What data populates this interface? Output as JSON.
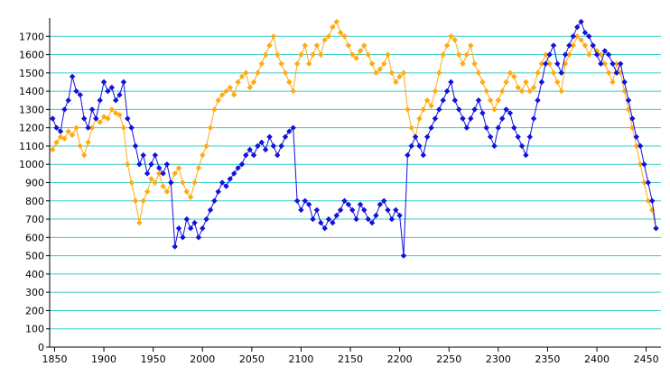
{
  "chart_data": {
    "type": "scatter",
    "xlim": [
      1845,
      2465
    ],
    "ylim": [
      0,
      1800
    ],
    "x_ticks": [
      1850,
      1900,
      1950,
      2000,
      2050,
      2100,
      2150,
      2200,
      2250,
      2300,
      2350,
      2400,
      2450
    ],
    "y_ticks": [
      0,
      100,
      200,
      300,
      400,
      500,
      600,
      700,
      800,
      900,
      1000,
      1100,
      1200,
      1300,
      1400,
      1500,
      1600,
      1700
    ],
    "grid": "horizontal",
    "colors": {
      "orange": "#ffaa11",
      "blue": "#1111dd",
      "grid": "#33cccc",
      "axis": "#000000"
    },
    "series": [
      {
        "color": "#ffaa11",
        "marker": "diamond",
        "points": [
          [
            1848,
            1080
          ],
          [
            1852,
            1120
          ],
          [
            1856,
            1150
          ],
          [
            1860,
            1140
          ],
          [
            1864,
            1180
          ],
          [
            1868,
            1160
          ],
          [
            1872,
            1200
          ],
          [
            1876,
            1100
          ],
          [
            1880,
            1050
          ],
          [
            1884,
            1120
          ],
          [
            1888,
            1200
          ],
          [
            1892,
            1250
          ],
          [
            1896,
            1230
          ],
          [
            1900,
            1260
          ],
          [
            1904,
            1250
          ],
          [
            1908,
            1300
          ],
          [
            1912,
            1280
          ],
          [
            1916,
            1270
          ],
          [
            1920,
            1200
          ],
          [
            1924,
            1000
          ],
          [
            1928,
            900
          ],
          [
            1932,
            800
          ],
          [
            1936,
            680
          ],
          [
            1940,
            800
          ],
          [
            1944,
            850
          ],
          [
            1948,
            920
          ],
          [
            1952,
            900
          ],
          [
            1956,
            950
          ],
          [
            1960,
            880
          ],
          [
            1964,
            850
          ],
          [
            1968,
            900
          ],
          [
            1972,
            950
          ],
          [
            1976,
            980
          ],
          [
            1980,
            900
          ],
          [
            1984,
            850
          ],
          [
            1988,
            820
          ],
          [
            1992,
            900
          ],
          [
            1996,
            980
          ],
          [
            2000,
            1050
          ],
          [
            2004,
            1100
          ],
          [
            2008,
            1200
          ],
          [
            2012,
            1300
          ],
          [
            2016,
            1350
          ],
          [
            2020,
            1380
          ],
          [
            2024,
            1400
          ],
          [
            2028,
            1420
          ],
          [
            2032,
            1380
          ],
          [
            2036,
            1450
          ],
          [
            2040,
            1480
          ],
          [
            2044,
            1500
          ],
          [
            2048,
            1420
          ],
          [
            2052,
            1450
          ],
          [
            2056,
            1500
          ],
          [
            2060,
            1550
          ],
          [
            2064,
            1600
          ],
          [
            2068,
            1650
          ],
          [
            2072,
            1700
          ],
          [
            2076,
            1600
          ],
          [
            2080,
            1550
          ],
          [
            2084,
            1500
          ],
          [
            2088,
            1450
          ],
          [
            2092,
            1400
          ],
          [
            2096,
            1550
          ],
          [
            2100,
            1600
          ],
          [
            2104,
            1650
          ],
          [
            2108,
            1550
          ],
          [
            2112,
            1600
          ],
          [
            2116,
            1650
          ],
          [
            2120,
            1600
          ],
          [
            2124,
            1680
          ],
          [
            2128,
            1700
          ],
          [
            2132,
            1750
          ],
          [
            2136,
            1780
          ],
          [
            2140,
            1720
          ],
          [
            2144,
            1700
          ],
          [
            2148,
            1650
          ],
          [
            2152,
            1600
          ],
          [
            2156,
            1580
          ],
          [
            2160,
            1620
          ],
          [
            2164,
            1650
          ],
          [
            2168,
            1600
          ],
          [
            2172,
            1550
          ],
          [
            2176,
            1500
          ],
          [
            2180,
            1520
          ],
          [
            2184,
            1550
          ],
          [
            2188,
            1600
          ],
          [
            2192,
            1500
          ],
          [
            2196,
            1450
          ],
          [
            2200,
            1480
          ],
          [
            2204,
            1500
          ],
          [
            2208,
            1300
          ],
          [
            2212,
            1200
          ],
          [
            2216,
            1150
          ],
          [
            2220,
            1250
          ],
          [
            2224,
            1300
          ],
          [
            2228,
            1350
          ],
          [
            2232,
            1320
          ],
          [
            2236,
            1400
          ],
          [
            2240,
            1500
          ],
          [
            2244,
            1600
          ],
          [
            2248,
            1650
          ],
          [
            2252,
            1700
          ],
          [
            2256,
            1680
          ],
          [
            2260,
            1600
          ],
          [
            2264,
            1550
          ],
          [
            2268,
            1600
          ],
          [
            2272,
            1650
          ],
          [
            2276,
            1550
          ],
          [
            2280,
            1500
          ],
          [
            2284,
            1450
          ],
          [
            2288,
            1400
          ],
          [
            2292,
            1350
          ],
          [
            2296,
            1300
          ],
          [
            2300,
            1350
          ],
          [
            2304,
            1400
          ],
          [
            2308,
            1450
          ],
          [
            2312,
            1500
          ],
          [
            2316,
            1480
          ],
          [
            2320,
            1420
          ],
          [
            2324,
            1400
          ],
          [
            2328,
            1450
          ],
          [
            2332,
            1400
          ],
          [
            2336,
            1420
          ],
          [
            2340,
            1500
          ],
          [
            2344,
            1550
          ],
          [
            2348,
            1600
          ],
          [
            2352,
            1550
          ],
          [
            2356,
            1500
          ],
          [
            2360,
            1450
          ],
          [
            2364,
            1400
          ],
          [
            2368,
            1550
          ],
          [
            2372,
            1600
          ],
          [
            2376,
            1650
          ],
          [
            2380,
            1700
          ],
          [
            2384,
            1680
          ],
          [
            2388,
            1650
          ],
          [
            2392,
            1600
          ],
          [
            2396,
            1650
          ],
          [
            2400,
            1620
          ],
          [
            2404,
            1600
          ],
          [
            2408,
            1550
          ],
          [
            2412,
            1500
          ],
          [
            2416,
            1450
          ],
          [
            2420,
            1550
          ],
          [
            2424,
            1500
          ],
          [
            2428,
            1400
          ],
          [
            2432,
            1300
          ],
          [
            2436,
            1200
          ],
          [
            2440,
            1100
          ],
          [
            2444,
            1000
          ],
          [
            2448,
            900
          ],
          [
            2452,
            800
          ],
          [
            2456,
            750
          ],
          [
            2460,
            650
          ]
        ]
      },
      {
        "color": "#1111dd",
        "marker": "diamond",
        "points": [
          [
            1848,
            1250
          ],
          [
            1852,
            1200
          ],
          [
            1856,
            1180
          ],
          [
            1860,
            1300
          ],
          [
            1864,
            1350
          ],
          [
            1868,
            1480
          ],
          [
            1872,
            1400
          ],
          [
            1876,
            1380
          ],
          [
            1880,
            1250
          ],
          [
            1884,
            1200
          ],
          [
            1888,
            1300
          ],
          [
            1892,
            1250
          ],
          [
            1896,
            1350
          ],
          [
            1900,
            1450
          ],
          [
            1904,
            1400
          ],
          [
            1908,
            1420
          ],
          [
            1912,
            1350
          ],
          [
            1916,
            1380
          ],
          [
            1920,
            1450
          ],
          [
            1924,
            1250
          ],
          [
            1928,
            1200
          ],
          [
            1932,
            1100
          ],
          [
            1936,
            1000
          ],
          [
            1940,
            1050
          ],
          [
            1944,
            950
          ],
          [
            1948,
            1000
          ],
          [
            1952,
            1050
          ],
          [
            1956,
            980
          ],
          [
            1960,
            950
          ],
          [
            1964,
            1000
          ],
          [
            1968,
            900
          ],
          [
            1972,
            550
          ],
          [
            1976,
            650
          ],
          [
            1980,
            600
          ],
          [
            1984,
            700
          ],
          [
            1988,
            650
          ],
          [
            1992,
            680
          ],
          [
            1996,
            600
          ],
          [
            2000,
            650
          ],
          [
            2004,
            700
          ],
          [
            2008,
            750
          ],
          [
            2012,
            800
          ],
          [
            2016,
            850
          ],
          [
            2020,
            900
          ],
          [
            2024,
            880
          ],
          [
            2028,
            920
          ],
          [
            2032,
            950
          ],
          [
            2036,
            980
          ],
          [
            2040,
            1000
          ],
          [
            2044,
            1050
          ],
          [
            2048,
            1080
          ],
          [
            2052,
            1050
          ],
          [
            2056,
            1100
          ],
          [
            2060,
            1120
          ],
          [
            2064,
            1080
          ],
          [
            2068,
            1150
          ],
          [
            2072,
            1100
          ],
          [
            2076,
            1050
          ],
          [
            2080,
            1100
          ],
          [
            2084,
            1150
          ],
          [
            2088,
            1180
          ],
          [
            2092,
            1200
          ],
          [
            2096,
            800
          ],
          [
            2100,
            750
          ],
          [
            2104,
            800
          ],
          [
            2108,
            780
          ],
          [
            2112,
            700
          ],
          [
            2116,
            750
          ],
          [
            2120,
            680
          ],
          [
            2124,
            650
          ],
          [
            2128,
            700
          ],
          [
            2132,
            680
          ],
          [
            2136,
            720
          ],
          [
            2140,
            750
          ],
          [
            2144,
            800
          ],
          [
            2148,
            780
          ],
          [
            2152,
            750
          ],
          [
            2156,
            700
          ],
          [
            2160,
            780
          ],
          [
            2164,
            750
          ],
          [
            2168,
            700
          ],
          [
            2172,
            680
          ],
          [
            2176,
            720
          ],
          [
            2180,
            780
          ],
          [
            2184,
            800
          ],
          [
            2188,
            750
          ],
          [
            2192,
            700
          ],
          [
            2196,
            750
          ],
          [
            2200,
            720
          ],
          [
            2204,
            500
          ],
          [
            2208,
            1050
          ],
          [
            2212,
            1100
          ],
          [
            2216,
            1150
          ],
          [
            2220,
            1100
          ],
          [
            2224,
            1050
          ],
          [
            2228,
            1150
          ],
          [
            2232,
            1200
          ],
          [
            2236,
            1250
          ],
          [
            2240,
            1300
          ],
          [
            2244,
            1350
          ],
          [
            2248,
            1400
          ],
          [
            2252,
            1450
          ],
          [
            2256,
            1350
          ],
          [
            2260,
            1300
          ],
          [
            2264,
            1250
          ],
          [
            2268,
            1200
          ],
          [
            2272,
            1250
          ],
          [
            2276,
            1300
          ],
          [
            2280,
            1350
          ],
          [
            2284,
            1280
          ],
          [
            2288,
            1200
          ],
          [
            2292,
            1150
          ],
          [
            2296,
            1100
          ],
          [
            2300,
            1200
          ],
          [
            2304,
            1250
          ],
          [
            2308,
            1300
          ],
          [
            2312,
            1280
          ],
          [
            2316,
            1200
          ],
          [
            2320,
            1150
          ],
          [
            2324,
            1100
          ],
          [
            2328,
            1050
          ],
          [
            2332,
            1150
          ],
          [
            2336,
            1250
          ],
          [
            2340,
            1350
          ],
          [
            2344,
            1450
          ],
          [
            2348,
            1550
          ],
          [
            2352,
            1600
          ],
          [
            2356,
            1650
          ],
          [
            2360,
            1550
          ],
          [
            2364,
            1500
          ],
          [
            2368,
            1600
          ],
          [
            2372,
            1650
          ],
          [
            2376,
            1700
          ],
          [
            2380,
            1750
          ],
          [
            2384,
            1780
          ],
          [
            2388,
            1720
          ],
          [
            2392,
            1700
          ],
          [
            2396,
            1650
          ],
          [
            2400,
            1600
          ],
          [
            2404,
            1550
          ],
          [
            2408,
            1620
          ],
          [
            2412,
            1600
          ],
          [
            2416,
            1550
          ],
          [
            2420,
            1500
          ],
          [
            2424,
            1550
          ],
          [
            2428,
            1450
          ],
          [
            2432,
            1350
          ],
          [
            2436,
            1250
          ],
          [
            2440,
            1150
          ],
          [
            2444,
            1100
          ],
          [
            2448,
            1000
          ],
          [
            2452,
            900
          ],
          [
            2456,
            800
          ],
          [
            2460,
            650
          ]
        ]
      }
    ]
  }
}
